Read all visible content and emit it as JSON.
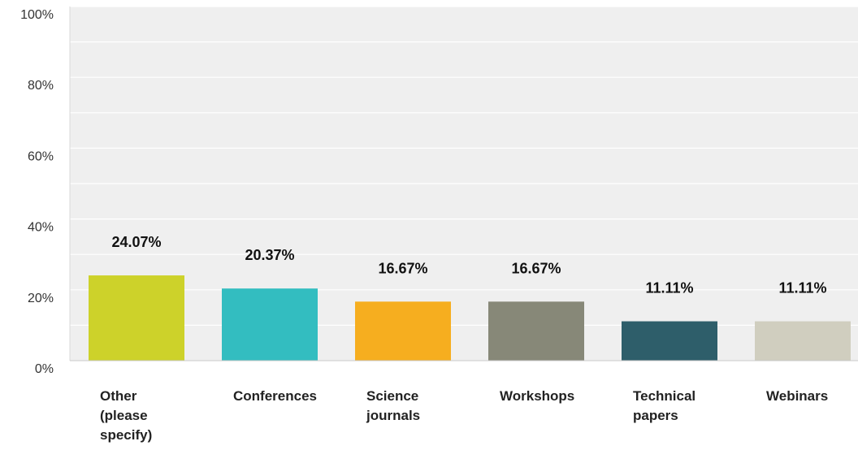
{
  "chart_data": {
    "type": "bar",
    "title": "",
    "xlabel": "",
    "ylabel": "",
    "ylim": [
      0,
      100
    ],
    "y_ticks": [
      "0%",
      "20%",
      "40%",
      "60%",
      "80%",
      "100%"
    ],
    "grid": true,
    "categories": [
      [
        "Other",
        "(please",
        "specify)"
      ],
      [
        "Conferences"
      ],
      [
        "Science",
        "journals"
      ],
      [
        "Workshops"
      ],
      [
        "Technical",
        "papers"
      ],
      [
        "Webinars"
      ]
    ],
    "values": [
      24.07,
      20.37,
      16.67,
      16.67,
      11.11,
      11.11
    ],
    "value_labels": [
      "24.07%",
      "20.37%",
      "16.67%",
      "16.67%",
      "11.11%",
      "11.11%"
    ],
    "colors": [
      "#cdd22a",
      "#33bdc0",
      "#f6ae1f",
      "#878878",
      "#2e5e6a",
      "#d0cebf"
    ],
    "plot_background": "#efefef"
  }
}
